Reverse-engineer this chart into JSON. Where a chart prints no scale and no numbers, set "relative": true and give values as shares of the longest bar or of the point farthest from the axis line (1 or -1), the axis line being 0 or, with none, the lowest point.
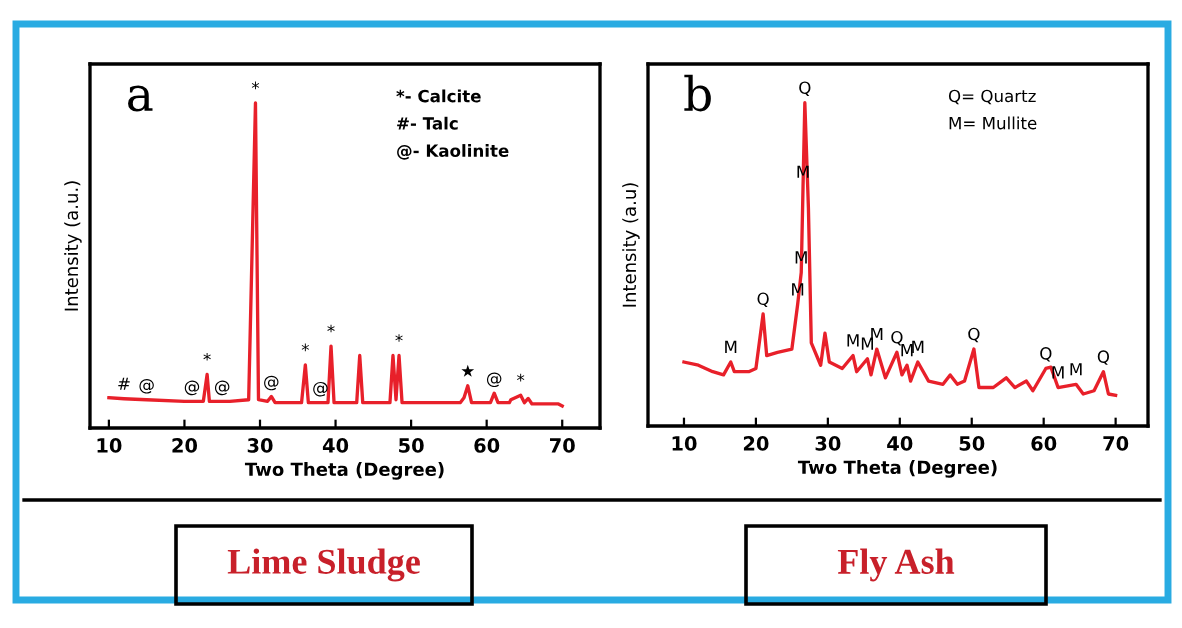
{
  "chart_data": [
    {
      "type": "line",
      "title": "a",
      "subtitle": "Lime Sludge",
      "xlabel": "Two Theta (Degree)",
      "ylabel": "Intensity (a.u.)",
      "relative": true,
      "tick_labels": "x",
      "grid": false,
      "legend": false,
      "xlim": [
        7.5,
        75
      ],
      "xticks": [
        10,
        20,
        30,
        40,
        50,
        60,
        70
      ],
      "x": [
        10,
        12,
        15,
        20,
        21,
        22.5,
        23,
        23.3,
        25,
        26,
        28.5,
        29.4,
        29.8,
        31,
        31.5,
        32,
        35.5,
        36,
        36.4,
        38,
        39,
        39.4,
        39.8,
        42.8,
        43.2,
        43.6,
        47.2,
        47.6,
        48,
        48.4,
        48.8,
        56.5,
        57,
        57.5,
        58,
        60.5,
        61,
        61.5,
        63,
        63.2,
        64.5,
        65,
        65.5,
        66,
        69.5,
        70
      ],
      "series": [
        {
          "color": "#e8202a",
          "values": [
            0.093,
            0.09,
            0.087,
            0.082,
            0.082,
            0.082,
            0.165,
            0.082,
            0.082,
            0.082,
            0.087,
            1.0,
            0.087,
            0.082,
            0.097,
            0.078,
            0.078,
            0.194,
            0.078,
            0.078,
            0.078,
            0.252,
            0.078,
            0.078,
            0.223,
            0.078,
            0.078,
            0.223,
            0.087,
            0.223,
            0.078,
            0.078,
            0.093,
            0.13,
            0.078,
            0.078,
            0.107,
            0.078,
            0.078,
            0.087,
            0.101,
            0.078,
            0.091,
            0.074,
            0.074,
            0.068
          ]
        }
      ],
      "annotations": [
        "*- Calcite",
        "#- Talc",
        "@- Kaolinite",
        {
          "text": "#",
          "x": 12,
          "y": 0.09
        },
        {
          "text": "@",
          "x": 15,
          "y": 0.087
        },
        {
          "text": "@",
          "x": 21,
          "y": 0.082
        },
        {
          "text": "@",
          "x": 25,
          "y": 0.082
        },
        {
          "text": "*",
          "x": 23,
          "y": 0.165
        },
        {
          "text": "*",
          "x": 29.4,
          "y": 1.0
        },
        {
          "text": "@",
          "x": 31.5,
          "y": 0.097
        },
        {
          "text": "*",
          "x": 36,
          "y": 0.194
        },
        {
          "text": "@",
          "x": 38,
          "y": 0.078
        },
        {
          "text": "*",
          "x": 39.4,
          "y": 0.252
        },
        {
          "text": "*",
          "x": 48.4,
          "y": 0.223
        },
        {
          "text": "★",
          "x": 57.5,
          "y": 0.13
        },
        {
          "text": "@",
          "x": 61,
          "y": 0.107
        },
        {
          "text": "*",
          "x": 64.5,
          "y": 0.101
        }
      ]
    },
    {
      "type": "line",
      "title": "b",
      "subtitle": "Fly Ash",
      "xlabel": "Two Theta (Degree)",
      "ylabel": "Intensity (a.u)",
      "relative": true,
      "tick_labels": "x",
      "grid": false,
      "legend": false,
      "xlim": [
        5,
        74.5
      ],
      "xticks": [
        10,
        20,
        30,
        40,
        50,
        60,
        70
      ],
      "x": [
        10,
        12,
        14,
        15.5,
        16.5,
        17,
        19,
        20,
        21,
        21.5,
        23,
        25,
        25.8,
        26.3,
        26.55,
        26.8,
        27.3,
        27.7,
        29,
        29.6,
        30.2,
        32,
        33.5,
        34,
        35.5,
        36,
        36.8,
        38,
        39.6,
        40.3,
        41,
        41.5,
        42.5,
        44,
        46,
        47,
        48,
        49,
        50.3,
        51,
        53,
        54.8,
        56,
        57.6,
        58.5,
        60.3,
        61,
        62,
        64.5,
        65.5,
        67,
        68.3,
        69,
        70
      ],
      "series": [
        {
          "color": "#e8202a",
          "values": [
            0.198,
            0.188,
            0.168,
            0.158,
            0.198,
            0.168,
            0.168,
            0.178,
            0.347,
            0.218,
            0.228,
            0.238,
            0.376,
            0.475,
            0.74,
            1.0,
            0.673,
            0.257,
            0.188,
            0.287,
            0.198,
            0.178,
            0.218,
            0.168,
            0.208,
            0.158,
            0.238,
            0.149,
            0.228,
            0.158,
            0.188,
            0.139,
            0.198,
            0.139,
            0.129,
            0.158,
            0.129,
            0.139,
            0.238,
            0.119,
            0.119,
            0.149,
            0.119,
            0.139,
            0.109,
            0.178,
            0.182,
            0.119,
            0.129,
            0.099,
            0.109,
            0.168,
            0.099,
            0.095
          ]
        }
      ],
      "annotations": [
        "Q= Quartz",
        "M= Mullite",
        {
          "text": "M",
          "x": 16.5,
          "y": 0.198
        },
        {
          "text": "Q",
          "x": 21,
          "y": 0.347
        },
        {
          "text": "M",
          "x": 25.8,
          "y": 0.376
        },
        {
          "text": "M",
          "x": 26.3,
          "y": 0.475
        },
        {
          "text": "M",
          "x": 26.55,
          "y": 0.74
        },
        {
          "text": "Q",
          "x": 26.8,
          "y": 1.0
        },
        {
          "text": "M",
          "x": 33.5,
          "y": 0.218
        },
        {
          "text": "M",
          "x": 35.5,
          "y": 0.208
        },
        {
          "text": "M",
          "x": 36.8,
          "y": 0.238
        },
        {
          "text": "Q",
          "x": 39.6,
          "y": 0.228
        },
        {
          "text": "M",
          "x": 41,
          "y": 0.188
        },
        {
          "text": "M",
          "x": 42.5,
          "y": 0.198
        },
        {
          "text": "Q",
          "x": 50.3,
          "y": 0.238
        },
        {
          "text": "Q",
          "x": 60.3,
          "y": 0.178
        },
        {
          "text": "M",
          "x": 62,
          "y": 0.119
        },
        {
          "text": "M",
          "x": 64.5,
          "y": 0.129
        },
        {
          "text": "Q",
          "x": 68.3,
          "y": 0.168
        }
      ]
    }
  ]
}
